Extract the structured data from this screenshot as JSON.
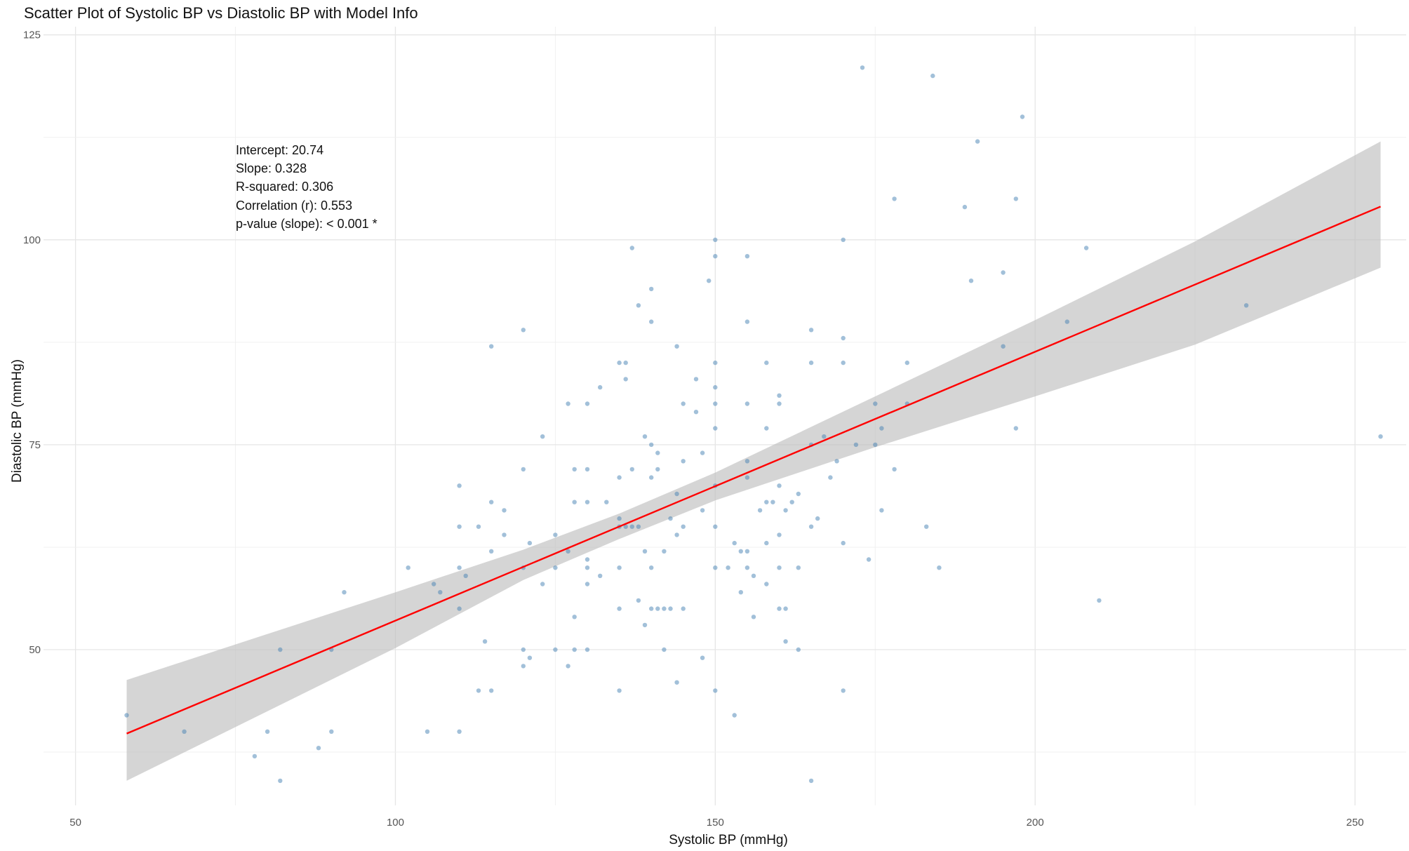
{
  "chart_data": {
    "type": "scatter",
    "title": "Scatter Plot of Systolic BP vs Diastolic BP with Model Info",
    "xlabel": "Systolic BP (mmHg)",
    "ylabel": "Diastolic BP (mmHg)",
    "xlim": [
      45,
      258
    ],
    "ylim": [
      31,
      126
    ],
    "x_ticks": [
      50,
      100,
      150,
      200,
      250
    ],
    "y_ticks": [
      50,
      75,
      100,
      125
    ],
    "grid": true,
    "colors": {
      "points": "#4682b4",
      "fit_line": "#ff0000",
      "ci_band": "#bebebe"
    },
    "points": [
      [
        58,
        42
      ],
      [
        67,
        40
      ],
      [
        78,
        37
      ],
      [
        80,
        40
      ],
      [
        82,
        34
      ],
      [
        82,
        50
      ],
      [
        88,
        38
      ],
      [
        90,
        40
      ],
      [
        90,
        50
      ],
      [
        92,
        57
      ],
      [
        102,
        60
      ],
      [
        105,
        40
      ],
      [
        106,
        58
      ],
      [
        107,
        57
      ],
      [
        110,
        40
      ],
      [
        110,
        55
      ],
      [
        110,
        60
      ],
      [
        110,
        65
      ],
      [
        110,
        70
      ],
      [
        111,
        59
      ],
      [
        113,
        45
      ],
      [
        113,
        65
      ],
      [
        114,
        51
      ],
      [
        115,
        45
      ],
      [
        115,
        62
      ],
      [
        115,
        68
      ],
      [
        115,
        87
      ],
      [
        117,
        64
      ],
      [
        117,
        67
      ],
      [
        120,
        48
      ],
      [
        120,
        50
      ],
      [
        120,
        60
      ],
      [
        120,
        72
      ],
      [
        120,
        89
      ],
      [
        121,
        49
      ],
      [
        121,
        63
      ],
      [
        123,
        58
      ],
      [
        123,
        76
      ],
      [
        125,
        50
      ],
      [
        125,
        60
      ],
      [
        125,
        64
      ],
      [
        127,
        48
      ],
      [
        127,
        62
      ],
      [
        127,
        80
      ],
      [
        128,
        50
      ],
      [
        128,
        54
      ],
      [
        128,
        68
      ],
      [
        128,
        72
      ],
      [
        130,
        50
      ],
      [
        130,
        58
      ],
      [
        130,
        60
      ],
      [
        130,
        61
      ],
      [
        130,
        68
      ],
      [
        130,
        72
      ],
      [
        130,
        80
      ],
      [
        132,
        59
      ],
      [
        132,
        82
      ],
      [
        133,
        68
      ],
      [
        135,
        45
      ],
      [
        135,
        55
      ],
      [
        135,
        60
      ],
      [
        135,
        65
      ],
      [
        135,
        66
      ],
      [
        135,
        71
      ],
      [
        135,
        85
      ],
      [
        136,
        65
      ],
      [
        136,
        83
      ],
      [
        136,
        85
      ],
      [
        137,
        65
      ],
      [
        137,
        72
      ],
      [
        137,
        99
      ],
      [
        138,
        56
      ],
      [
        138,
        65
      ],
      [
        138,
        92
      ],
      [
        139,
        53
      ],
      [
        139,
        62
      ],
      [
        139,
        76
      ],
      [
        140,
        55
      ],
      [
        140,
        60
      ],
      [
        140,
        71
      ],
      [
        140,
        75
      ],
      [
        140,
        90
      ],
      [
        140,
        94
      ],
      [
        141,
        55
      ],
      [
        141,
        72
      ],
      [
        141,
        74
      ],
      [
        142,
        50
      ],
      [
        142,
        55
      ],
      [
        142,
        62
      ],
      [
        143,
        55
      ],
      [
        143,
        66
      ],
      [
        144,
        46
      ],
      [
        144,
        64
      ],
      [
        144,
        69
      ],
      [
        144,
        87
      ],
      [
        145,
        55
      ],
      [
        145,
        65
      ],
      [
        145,
        73
      ],
      [
        145,
        80
      ],
      [
        147,
        79
      ],
      [
        147,
        83
      ],
      [
        148,
        49
      ],
      [
        148,
        67
      ],
      [
        148,
        74
      ],
      [
        149,
        95
      ],
      [
        150,
        45
      ],
      [
        150,
        60
      ],
      [
        150,
        65
      ],
      [
        150,
        70
      ],
      [
        150,
        77
      ],
      [
        150,
        80
      ],
      [
        150,
        82
      ],
      [
        150,
        85
      ],
      [
        150,
        98
      ],
      [
        150,
        100
      ],
      [
        152,
        60
      ],
      [
        153,
        42
      ],
      [
        153,
        63
      ],
      [
        154,
        57
      ],
      [
        154,
        62
      ],
      [
        155,
        60
      ],
      [
        155,
        62
      ],
      [
        155,
        71
      ],
      [
        155,
        73
      ],
      [
        155,
        80
      ],
      [
        155,
        90
      ],
      [
        155,
        98
      ],
      [
        156,
        54
      ],
      [
        156,
        59
      ],
      [
        157,
        67
      ],
      [
        158,
        58
      ],
      [
        158,
        63
      ],
      [
        158,
        68
      ],
      [
        158,
        77
      ],
      [
        158,
        85
      ],
      [
        159,
        68
      ],
      [
        160,
        55
      ],
      [
        160,
        60
      ],
      [
        160,
        64
      ],
      [
        160,
        70
      ],
      [
        160,
        80
      ],
      [
        160,
        81
      ],
      [
        161,
        51
      ],
      [
        161,
        55
      ],
      [
        161,
        67
      ],
      [
        162,
        68
      ],
      [
        163,
        50
      ],
      [
        163,
        60
      ],
      [
        163,
        69
      ],
      [
        165,
        34
      ],
      [
        165,
        65
      ],
      [
        165,
        75
      ],
      [
        165,
        85
      ],
      [
        165,
        89
      ],
      [
        166,
        66
      ],
      [
        167,
        76
      ],
      [
        168,
        71
      ],
      [
        169,
        73
      ],
      [
        170,
        45
      ],
      [
        170,
        63
      ],
      [
        170,
        85
      ],
      [
        170,
        88
      ],
      [
        170,
        100
      ],
      [
        172,
        75
      ],
      [
        173,
        121
      ],
      [
        174,
        61
      ],
      [
        175,
        75
      ],
      [
        175,
        80
      ],
      [
        176,
        67
      ],
      [
        176,
        77
      ],
      [
        178,
        72
      ],
      [
        178,
        105
      ],
      [
        180,
        80
      ],
      [
        180,
        85
      ],
      [
        183,
        65
      ],
      [
        184,
        120
      ],
      [
        185,
        60
      ],
      [
        189,
        104
      ],
      [
        190,
        95
      ],
      [
        191,
        112
      ],
      [
        195,
        87
      ],
      [
        195,
        96
      ],
      [
        197,
        77
      ],
      [
        197,
        105
      ],
      [
        198,
        115
      ],
      [
        205,
        90
      ],
      [
        208,
        99
      ],
      [
        210,
        56
      ],
      [
        233,
        92
      ],
      [
        254,
        76
      ]
    ],
    "fit": {
      "x_range": [
        58,
        254
      ],
      "band": [
        {
          "x": 58,
          "lower": 34.0,
          "upper": 46.3
        },
        {
          "x": 100,
          "lower": 50.2,
          "upper": 57.0
        },
        {
          "x": 120,
          "lower": 58.5,
          "upper": 62.2
        },
        {
          "x": 135,
          "lower": 63.5,
          "upper": 66.6
        },
        {
          "x": 150,
          "lower": 68.2,
          "upper": 71.6
        },
        {
          "x": 175,
          "lower": 74.7,
          "upper": 80.9
        },
        {
          "x": 200,
          "lower": 80.9,
          "upper": 90.2
        },
        {
          "x": 225,
          "lower": 87.2,
          "upper": 99.8
        },
        {
          "x": 254,
          "lower": 96.6,
          "upper": 112.0
        }
      ]
    },
    "annotation": {
      "lines": [
        "Intercept: 20.74",
        "Slope: 0.328",
        "R-squared: 0.306",
        "Correlation (r): 0.553",
        "p-value (slope): < 0.001 *"
      ],
      "intercept": 20.74,
      "slope": 0.328
    }
  }
}
